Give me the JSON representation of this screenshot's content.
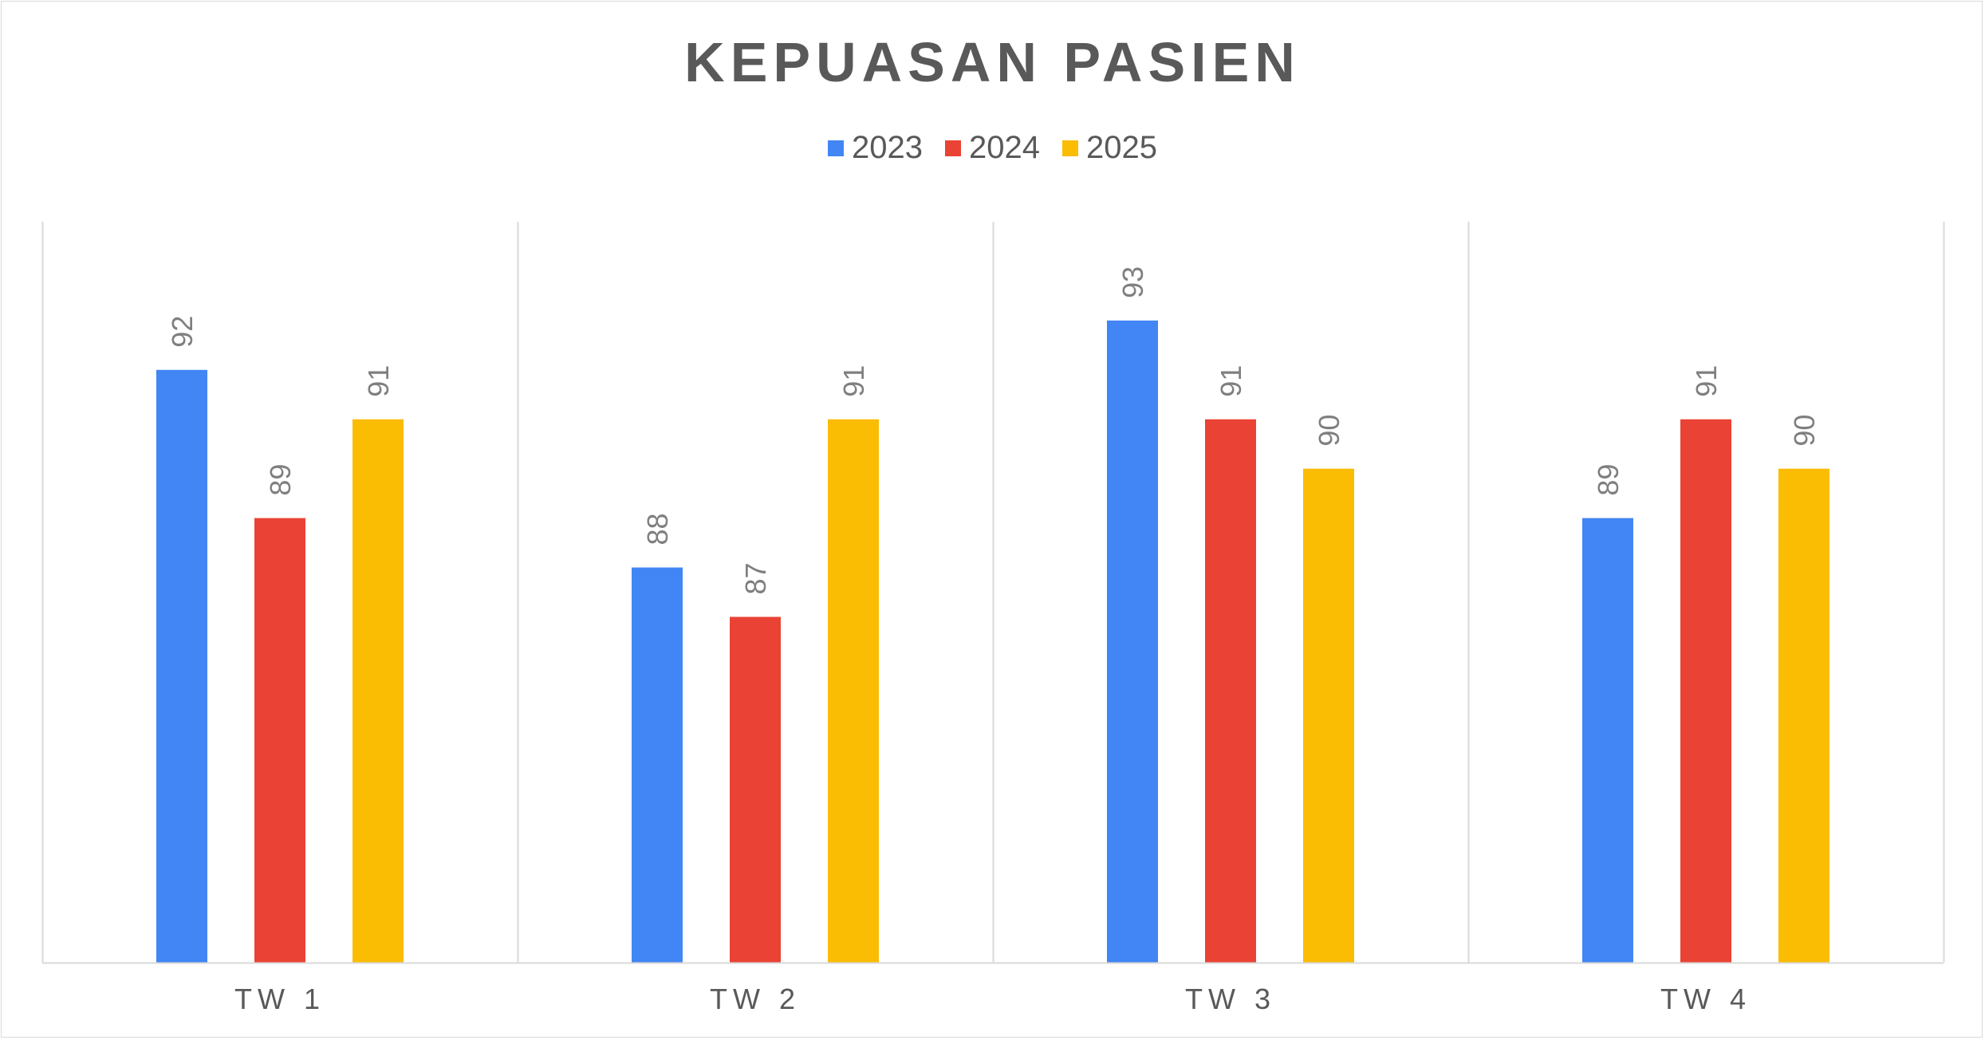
{
  "chart_data": {
    "type": "bar",
    "title": "KEPUASAN PASIEN",
    "categories": [
      "TW 1",
      "TW 2",
      "TW 3",
      "TW 4"
    ],
    "series": [
      {
        "name": "2023",
        "color": "#4285F4",
        "values": [
          92,
          88,
          93,
          89
        ]
      },
      {
        "name": "2024",
        "color": "#EA4335",
        "values": [
          89,
          87,
          91,
          91
        ]
      },
      {
        "name": "2025",
        "color": "#FBBC04",
        "values": [
          91,
          91,
          90,
          90
        ]
      }
    ],
    "ylim": [
      80,
      95
    ],
    "grid": "vertical category separators",
    "legend_position": "top",
    "data_labels": true
  }
}
